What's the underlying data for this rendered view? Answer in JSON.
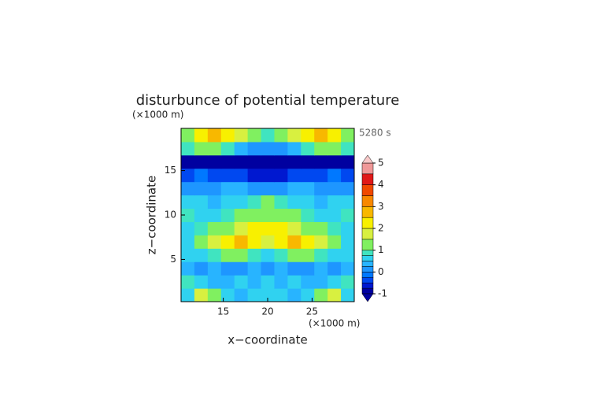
{
  "chart_data": {
    "type": "contour",
    "title": "disturbunce of potential temperature",
    "y_unit": "(×1000 m)",
    "x_unit": "(×1000 m)",
    "time_label": "5280 s",
    "xlabel": "x−coordinate",
    "ylabel": "z−coordinate",
    "xlim": [
      10.25,
      29.75
    ],
    "ylim": [
      0.25,
      19.75
    ],
    "xticks": [
      15,
      20,
      25
    ],
    "yticks": [
      5,
      10,
      15
    ],
    "x": [
      11,
      12.5,
      14,
      15.5,
      17,
      18.5,
      20,
      21.5,
      23,
      24.5,
      26,
      27.5,
      29
    ],
    "y": [
      1,
      2.5,
      4,
      5.5,
      7,
      8.5,
      10,
      11.5,
      13,
      14.5,
      16,
      17.5,
      19
    ],
    "z": [
      [
        0.6,
        1.6,
        1.2,
        0.5,
        0.4,
        0.6,
        0.7,
        0.6,
        0.4,
        0.5,
        1.2,
        1.6,
        0.6
      ],
      [
        0.8,
        0.5,
        0.4,
        0.3,
        0.5,
        0.3,
        0.5,
        0.3,
        0.5,
        0.3,
        0.4,
        0.5,
        0.8
      ],
      [
        0.4,
        0.1,
        0.3,
        0.2,
        0.1,
        0.4,
        0.2,
        0.4,
        0.1,
        0.2,
        0.3,
        0.1,
        0.4
      ],
      [
        0.5,
        0.7,
        0.9,
        1.3,
        1.0,
        0.8,
        0.7,
        0.8,
        1.0,
        1.3,
        0.9,
        0.7,
        0.5
      ],
      [
        0.7,
        1.0,
        1.8,
        2.4,
        2.7,
        2.2,
        1.8,
        2.2,
        2.7,
        2.4,
        1.8,
        1.0,
        0.7
      ],
      [
        0.6,
        0.8,
        1.0,
        1.2,
        1.6,
        2.0,
        2.2,
        2.0,
        1.6,
        1.2,
        1.0,
        0.8,
        0.6
      ],
      [
        0.8,
        0.6,
        0.7,
        0.8,
        1.0,
        1.2,
        1.3,
        1.2,
        1.0,
        0.8,
        0.7,
        0.6,
        0.8
      ],
      [
        0.5,
        0.6,
        0.4,
        0.5,
        0.6,
        0.8,
        1.0,
        0.8,
        0.6,
        0.5,
        0.4,
        0.6,
        0.5
      ],
      [
        0.2,
        0.1,
        0.2,
        0.3,
        0.3,
        0.2,
        0.1,
        0.2,
        0.3,
        0.3,
        0.2,
        0.1,
        0.2
      ],
      [
        -0.3,
        -0.2,
        -0.3,
        -0.4,
        -0.5,
        -0.6,
        -0.7,
        -0.6,
        -0.5,
        -0.4,
        -0.3,
        -0.2,
        -0.3
      ],
      [
        -0.8,
        -0.8,
        -0.8,
        -0.8,
        -0.9,
        -0.9,
        -0.9,
        -0.9,
        -0.9,
        -0.8,
        -0.8,
        -0.8,
        -0.8
      ],
      [
        0.9,
        1.2,
        1.1,
        0.8,
        0.4,
        0.2,
        0.1,
        0.2,
        0.4,
        0.8,
        1.1,
        1.2,
        0.9
      ],
      [
        1.4,
        2.3,
        2.6,
        2.0,
        1.6,
        1.1,
        0.8,
        1.1,
        1.6,
        2.0,
        2.6,
        2.3,
        1.4
      ]
    ],
    "levels": [
      -1,
      -0.75,
      -0.5,
      -0.25,
      0,
      0.25,
      0.5,
      0.75,
      1,
      1.5,
      2,
      2.5,
      3,
      3.5,
      4,
      4.5,
      5
    ],
    "colors": [
      "#0000a0",
      "#0018d0",
      "#0048f0",
      "#0078ff",
      "#1e96ff",
      "#28b4ff",
      "#30d2f0",
      "#40e4c0",
      "#80f060",
      "#d8f040",
      "#f8f000",
      "#f8b800",
      "#f88800",
      "#f04800",
      "#e01818",
      "#f09898"
    ],
    "under_color": "#0000a0",
    "over_color": "#f8c8c8",
    "colorbar_ticks": [
      -1,
      0,
      1,
      2,
      3,
      4,
      5
    ]
  }
}
